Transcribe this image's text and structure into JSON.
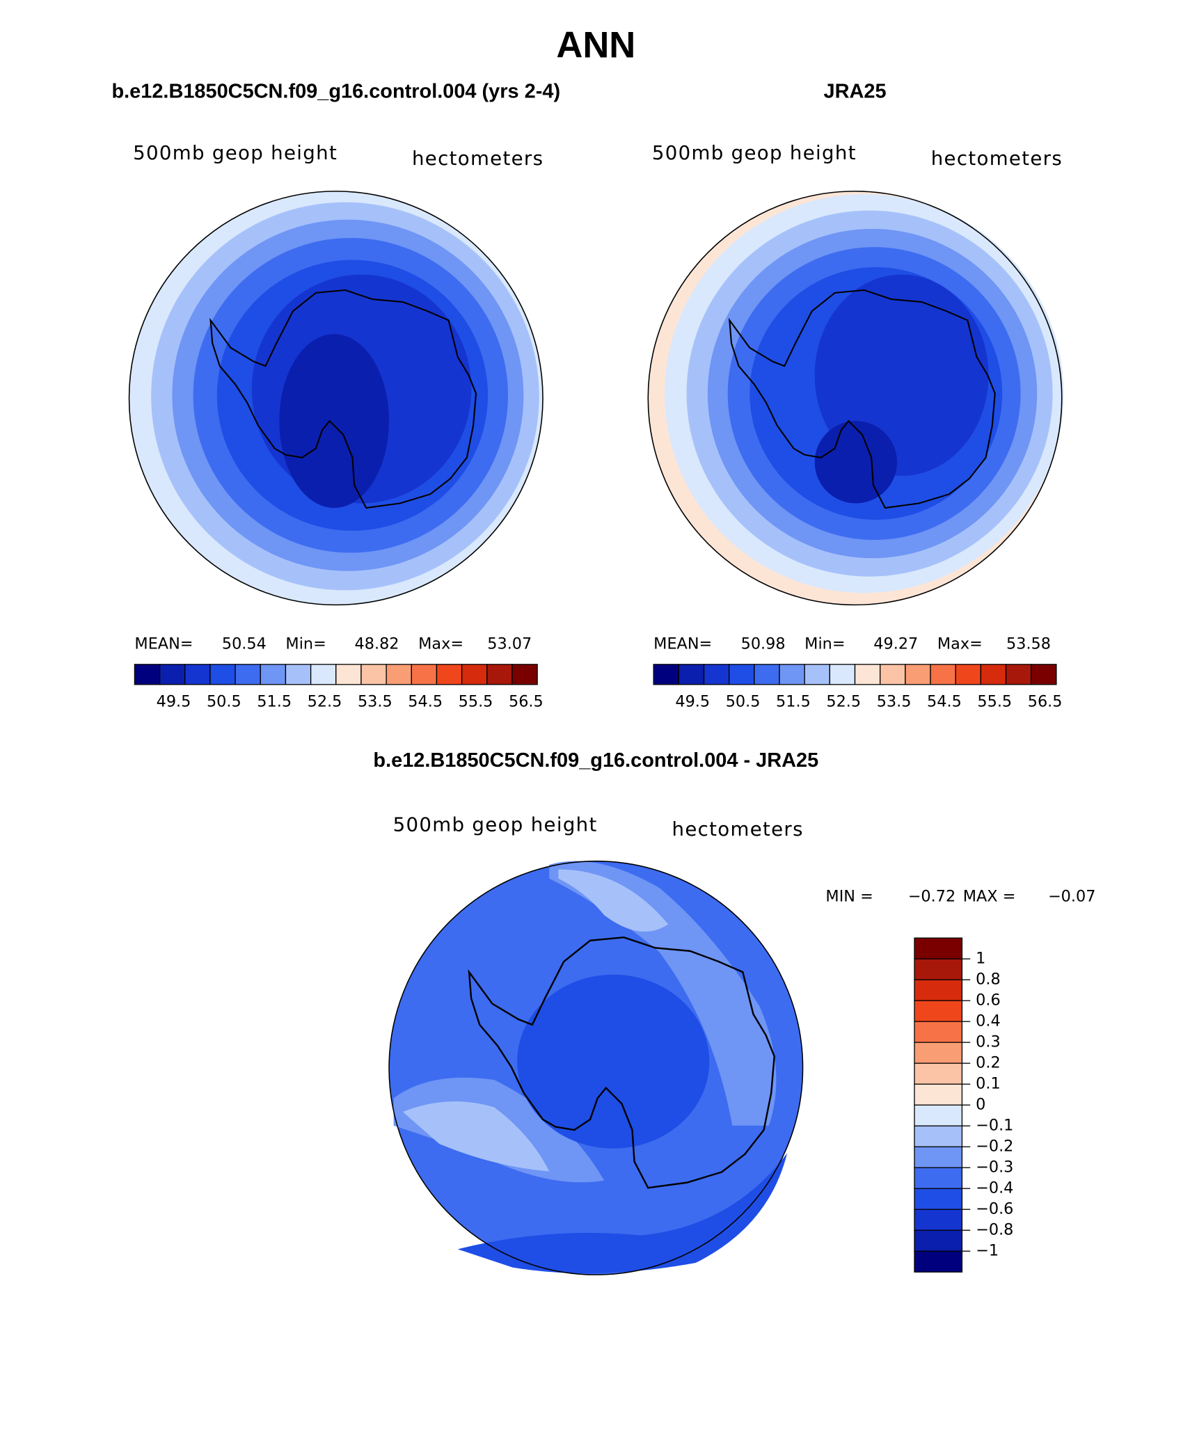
{
  "title": "ANN",
  "panels": [
    {
      "title": "b.e12.B1850C5CN.f09_g16.control.004 (yrs 2-4)",
      "field": "500mb  geop height",
      "units": "hectometers",
      "stats": [
        {
          "label": "MEAN=",
          "value": "50.54"
        },
        {
          "label": "Min=",
          "value": "48.82"
        },
        {
          "label": "Max=",
          "value": "53.07"
        }
      ]
    },
    {
      "title": "JRA25",
      "field": "500mb  geop height",
      "units": "hectometers",
      "stats": [
        {
          "label": "MEAN=",
          "value": "50.98"
        },
        {
          "label": "Min=",
          "value": "49.27"
        },
        {
          "label": "Max=",
          "value": "53.58"
        }
      ]
    }
  ],
  "colorbar": {
    "colors": [
      "#00007f",
      "#0b1fae",
      "#1535d0",
      "#1f4ee6",
      "#3d6cf0",
      "#6f95f5",
      "#a6c1fa",
      "#d9e8fc",
      "#fde5d6",
      "#fcc4a7",
      "#f99d75",
      "#f77247",
      "#f0461c",
      "#d62b0c",
      "#a8180a",
      "#7a0000"
    ],
    "labels": [
      "49.5",
      "50.5",
      "51.5",
      "52.5",
      "53.5",
      "54.5",
      "55.5",
      "56.5"
    ]
  },
  "difference": {
    "title": "b.e12.B1850C5CN.f09_g16.control.004 - JRA25",
    "field": "500mb  geop height",
    "units": "hectometers",
    "stats": [
      {
        "label": "MIN =",
        "value": "−0.72"
      },
      {
        "label": "MAX =",
        "value": "−0.07"
      }
    ],
    "colorbar": {
      "colors": [
        "#7a0000",
        "#a8180a",
        "#d62b0c",
        "#f0461c",
        "#f77247",
        "#f99d75",
        "#fcc4a7",
        "#fde5d6",
        "#d9e8fc",
        "#a6c1fa",
        "#6f95f5",
        "#3d6cf0",
        "#1f4ee6",
        "#1535d0",
        "#0b1fae",
        "#00007f"
      ],
      "labels": [
        "1",
        "0.8",
        "0.6",
        "0.4",
        "0.3",
        "0.2",
        "0.1",
        "0",
        "−0.1",
        "−0.2",
        "−0.3",
        "−0.4",
        "−0.6",
        "−0.8",
        "−1"
      ]
    }
  }
}
